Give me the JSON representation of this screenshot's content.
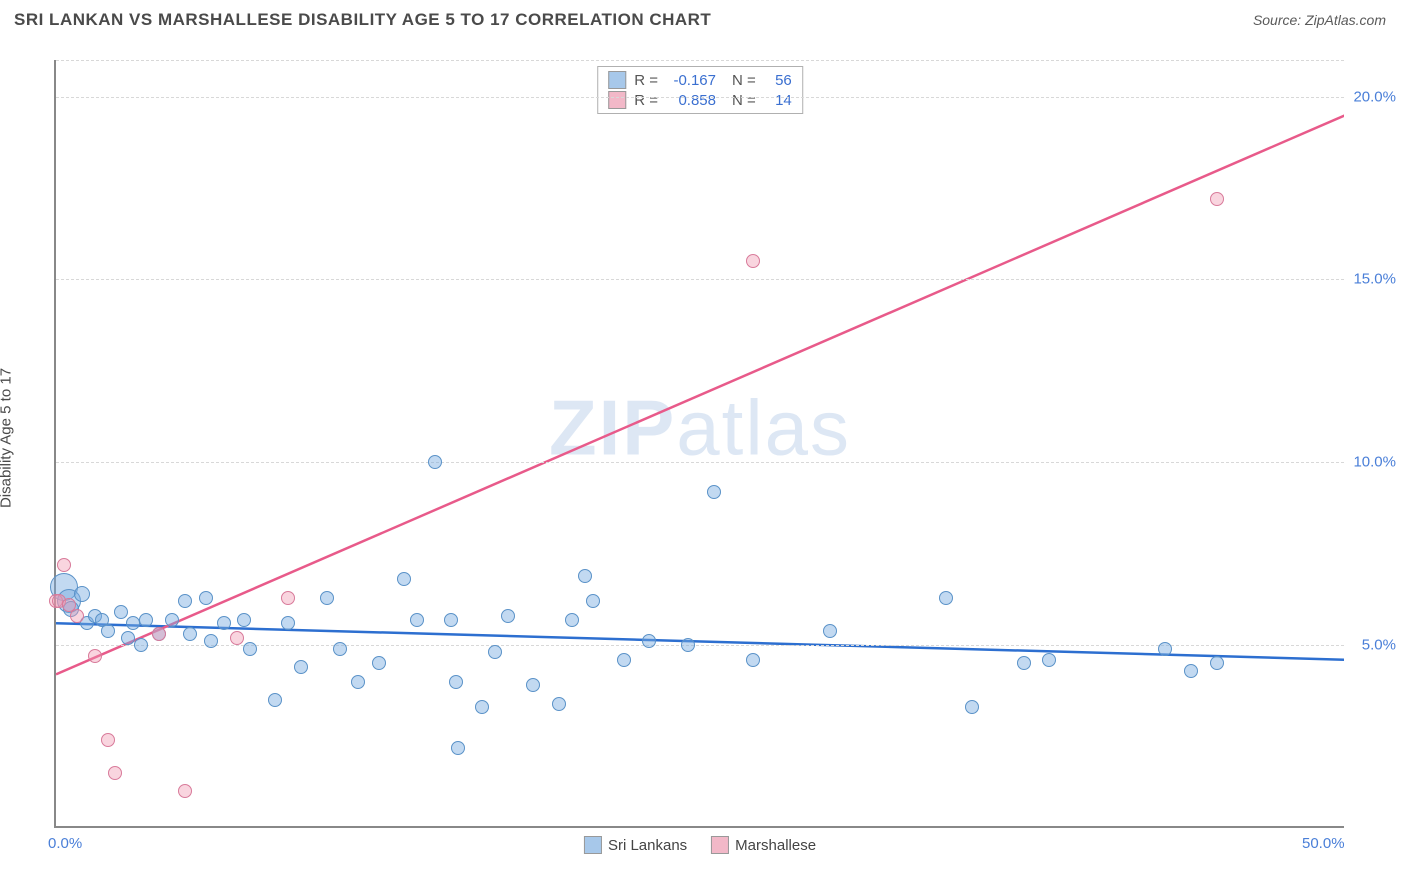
{
  "header": {
    "title": "SRI LANKAN VS MARSHALLESE DISABILITY AGE 5 TO 17 CORRELATION CHART",
    "source_label": "Source: ",
    "source_value": "ZipAtlas.com"
  },
  "chart": {
    "type": "scatter",
    "ylabel": "Disability Age 5 to 17",
    "xlim": [
      0,
      50
    ],
    "ylim": [
      0,
      21
    ],
    "xticks": [
      {
        "value": 0,
        "label": "0.0%"
      },
      {
        "value": 50,
        "label": "50.0%"
      }
    ],
    "yticks": [
      {
        "value": 5,
        "label": "5.0%"
      },
      {
        "value": 10,
        "label": "10.0%"
      },
      {
        "value": 15,
        "label": "15.0%"
      },
      {
        "value": 20,
        "label": "20.0%"
      }
    ],
    "background_color": "#ffffff",
    "grid_color": "#d8d8d8",
    "axis_color": "#888888",
    "tick_label_color": "#4a7fd8",
    "watermark": "ZIPatlas",
    "series": [
      {
        "name": "Sri Lankans",
        "color_fill": "rgba(120,170,225,0.45)",
        "color_stroke": "#5a92c8",
        "legend_swatch": "#a7c8ea",
        "trend_color": "#2d6fd0",
        "trend_start_y": 5.6,
        "trend_end_y": 4.6,
        "stats": {
          "R": "-0.167",
          "N": "56"
        },
        "points": [
          {
            "x": 0.3,
            "y": 6.6,
            "r": 14
          },
          {
            "x": 0.5,
            "y": 6.2,
            "r": 12
          },
          {
            "x": 0.6,
            "y": 6.0,
            "r": 8
          },
          {
            "x": 1.0,
            "y": 6.4,
            "r": 8
          },
          {
            "x": 1.2,
            "y": 5.6,
            "r": 7
          },
          {
            "x": 1.5,
            "y": 5.8,
            "r": 7
          },
          {
            "x": 1.8,
            "y": 5.7,
            "r": 7
          },
          {
            "x": 2.0,
            "y": 5.4,
            "r": 7
          },
          {
            "x": 2.5,
            "y": 5.9,
            "r": 7
          },
          {
            "x": 2.8,
            "y": 5.2,
            "r": 7
          },
          {
            "x": 3.0,
            "y": 5.6,
            "r": 7
          },
          {
            "x": 3.3,
            "y": 5.0,
            "r": 7
          },
          {
            "x": 3.5,
            "y": 5.7,
            "r": 7
          },
          {
            "x": 4.0,
            "y": 5.3,
            "r": 7
          },
          {
            "x": 4.5,
            "y": 5.7,
            "r": 7
          },
          {
            "x": 5.0,
            "y": 6.2,
            "r": 7
          },
          {
            "x": 5.2,
            "y": 5.3,
            "r": 7
          },
          {
            "x": 5.8,
            "y": 6.3,
            "r": 7
          },
          {
            "x": 6.0,
            "y": 5.1,
            "r": 7
          },
          {
            "x": 6.5,
            "y": 5.6,
            "r": 7
          },
          {
            "x": 7.3,
            "y": 5.7,
            "r": 7
          },
          {
            "x": 7.5,
            "y": 4.9,
            "r": 7
          },
          {
            "x": 8.5,
            "y": 3.5,
            "r": 7
          },
          {
            "x": 9.0,
            "y": 5.6,
            "r": 7
          },
          {
            "x": 9.5,
            "y": 4.4,
            "r": 7
          },
          {
            "x": 10.5,
            "y": 6.3,
            "r": 7
          },
          {
            "x": 11.0,
            "y": 4.9,
            "r": 7
          },
          {
            "x": 11.7,
            "y": 4.0,
            "r": 7
          },
          {
            "x": 12.5,
            "y": 4.5,
            "r": 7
          },
          {
            "x": 13.5,
            "y": 6.8,
            "r": 7
          },
          {
            "x": 14.0,
            "y": 5.7,
            "r": 7
          },
          {
            "x": 14.7,
            "y": 10.0,
            "r": 7
          },
          {
            "x": 15.3,
            "y": 5.7,
            "r": 7
          },
          {
            "x": 15.5,
            "y": 4.0,
            "r": 7
          },
          {
            "x": 15.6,
            "y": 2.2,
            "r": 7
          },
          {
            "x": 16.5,
            "y": 3.3,
            "r": 7
          },
          {
            "x": 17.0,
            "y": 4.8,
            "r": 7
          },
          {
            "x": 17.5,
            "y": 5.8,
            "r": 7
          },
          {
            "x": 18.5,
            "y": 3.9,
            "r": 7
          },
          {
            "x": 19.5,
            "y": 3.4,
            "r": 7
          },
          {
            "x": 20.0,
            "y": 5.7,
            "r": 7
          },
          {
            "x": 20.5,
            "y": 6.9,
            "r": 7
          },
          {
            "x": 20.8,
            "y": 6.2,
            "r": 7
          },
          {
            "x": 22.0,
            "y": 4.6,
            "r": 7
          },
          {
            "x": 23.0,
            "y": 5.1,
            "r": 7
          },
          {
            "x": 24.5,
            "y": 5.0,
            "r": 7
          },
          {
            "x": 25.5,
            "y": 9.2,
            "r": 7
          },
          {
            "x": 27.0,
            "y": 4.6,
            "r": 7
          },
          {
            "x": 30.0,
            "y": 5.4,
            "r": 7
          },
          {
            "x": 34.5,
            "y": 6.3,
            "r": 7
          },
          {
            "x": 35.5,
            "y": 3.3,
            "r": 7
          },
          {
            "x": 37.5,
            "y": 4.5,
            "r": 7
          },
          {
            "x": 38.5,
            "y": 4.6,
            "r": 7
          },
          {
            "x": 43.0,
            "y": 4.9,
            "r": 7
          },
          {
            "x": 44.0,
            "y": 4.3,
            "r": 7
          },
          {
            "x": 45.0,
            "y": 4.5,
            "r": 7
          }
        ]
      },
      {
        "name": "Marshallese",
        "color_fill": "rgba(240,150,175,0.4)",
        "color_stroke": "#d87a9a",
        "legend_swatch": "#f2b8c8",
        "trend_color": "#e85a8a",
        "trend_start_y": 4.2,
        "trend_end_y": 19.5,
        "stats": {
          "R": "0.858",
          "N": "14"
        },
        "points": [
          {
            "x": 0.0,
            "y": 6.2,
            "r": 7
          },
          {
            "x": 0.1,
            "y": 6.2,
            "r": 7
          },
          {
            "x": 0.3,
            "y": 7.2,
            "r": 7
          },
          {
            "x": 0.5,
            "y": 6.1,
            "r": 7
          },
          {
            "x": 0.8,
            "y": 5.8,
            "r": 7
          },
          {
            "x": 1.5,
            "y": 4.7,
            "r": 7
          },
          {
            "x": 2.0,
            "y": 2.4,
            "r": 7
          },
          {
            "x": 2.3,
            "y": 1.5,
            "r": 7
          },
          {
            "x": 4.0,
            "y": 5.3,
            "r": 7
          },
          {
            "x": 5.0,
            "y": 1.0,
            "r": 7
          },
          {
            "x": 7.0,
            "y": 5.2,
            "r": 7
          },
          {
            "x": 9.0,
            "y": 6.3,
            "r": 7
          },
          {
            "x": 27.0,
            "y": 15.5,
            "r": 7
          },
          {
            "x": 45.0,
            "y": 17.2,
            "r": 7
          }
        ]
      }
    ],
    "stats_box": {
      "r_label": "R =",
      "n_label": "N ="
    },
    "legend": [
      {
        "label": "Sri Lankans",
        "swatch": "#a7c8ea"
      },
      {
        "label": "Marshallese",
        "swatch": "#f2b8c8"
      }
    ]
  }
}
